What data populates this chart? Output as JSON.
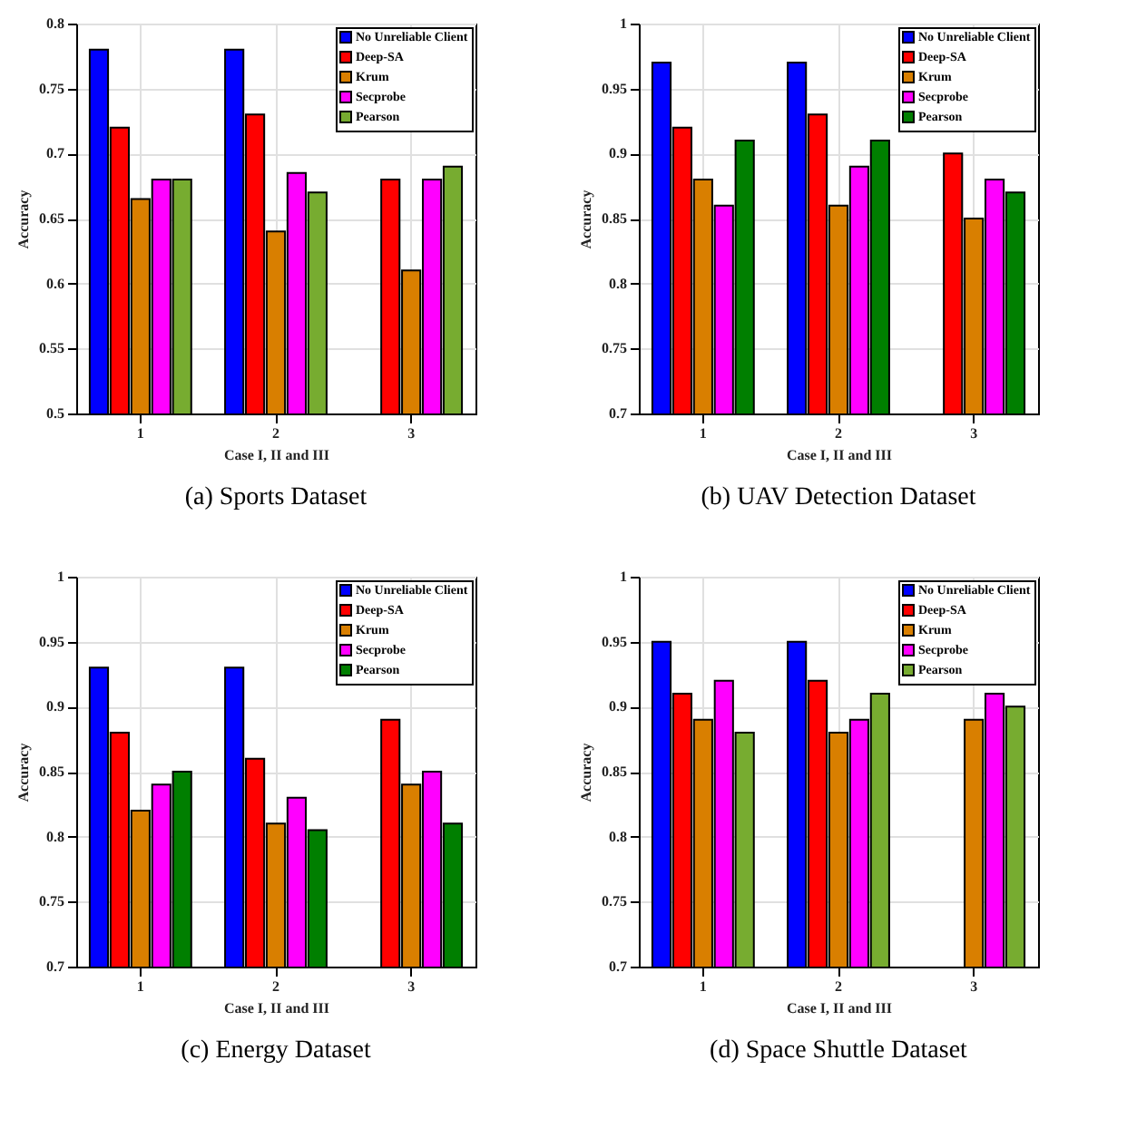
{
  "chart_data": [
    {
      "type": "bar",
      "title": "(a)  Sports Dataset",
      "xlabel": "Case I, II and III",
      "ylabel": "Accuracy",
      "categories": [
        "1",
        "2",
        "3"
      ],
      "ylim": [
        0.5,
        0.8
      ],
      "yticks": [
        0.5,
        0.55,
        0.6,
        0.65,
        0.7,
        0.75,
        0.8
      ],
      "grid": true,
      "legend": "top right",
      "series": [
        {
          "name": "No Unreliable Client",
          "color": "#0000ff",
          "values": [
            0.78,
            0.78,
            null
          ]
        },
        {
          "name": "Deep-SA",
          "color": "#ff0000",
          "values": [
            0.72,
            0.73,
            0.68
          ]
        },
        {
          "name": "Krum",
          "color": "#d97f00",
          "values": [
            0.665,
            0.64,
            0.61
          ]
        },
        {
          "name": "Secprobe",
          "color": "#ff00ff",
          "values": [
            0.68,
            0.685,
            0.68
          ]
        },
        {
          "name": "Pearson",
          "color": "#77ac30",
          "values": [
            0.68,
            0.67,
            0.69
          ]
        }
      ]
    },
    {
      "type": "bar",
      "title": "(b)  UAV Detection Dataset",
      "xlabel": "Case I, II and III",
      "ylabel": "Accuracy",
      "categories": [
        "1",
        "2",
        "3"
      ],
      "ylim": [
        0.7,
        1
      ],
      "yticks": [
        0.7,
        0.75,
        0.8,
        0.85,
        0.9,
        0.95,
        1
      ],
      "grid": true,
      "legend": "top right",
      "series": [
        {
          "name": "No Unreliable Client",
          "color": "#0000ff",
          "values": [
            0.97,
            0.97,
            null
          ]
        },
        {
          "name": "Deep-SA",
          "color": "#ff0000",
          "values": [
            0.92,
            0.93,
            0.9
          ]
        },
        {
          "name": "Krum",
          "color": "#d97f00",
          "values": [
            0.88,
            0.86,
            0.85
          ]
        },
        {
          "name": "Secprobe",
          "color": "#ff00ff",
          "values": [
            0.86,
            0.89,
            0.88
          ]
        },
        {
          "name": "Pearson",
          "color": "#007f00",
          "values": [
            0.91,
            0.91,
            0.87
          ]
        }
      ]
    },
    {
      "type": "bar",
      "title": "(c)  Energy Dataset",
      "xlabel": "Case I, II and III",
      "ylabel": "Accuracy",
      "categories": [
        "1",
        "2",
        "3"
      ],
      "ylim": [
        0.7,
        1
      ],
      "yticks": [
        0.7,
        0.75,
        0.8,
        0.85,
        0.9,
        0.95,
        1
      ],
      "grid": true,
      "legend": "top right",
      "series": [
        {
          "name": "No Unreliable Client",
          "color": "#0000ff",
          "values": [
            0.93,
            0.93,
            null
          ]
        },
        {
          "name": "Deep-SA",
          "color": "#ff0000",
          "values": [
            0.88,
            0.86,
            0.89
          ]
        },
        {
          "name": "Krum",
          "color": "#d97f00",
          "values": [
            0.82,
            0.81,
            0.84
          ]
        },
        {
          "name": "Secprobe",
          "color": "#ff00ff",
          "values": [
            0.84,
            0.83,
            0.85
          ]
        },
        {
          "name": "Pearson",
          "color": "#007f00",
          "values": [
            0.85,
            0.805,
            0.81
          ]
        }
      ]
    },
    {
      "type": "bar",
      "title": "(d)  Space Shuttle Dataset",
      "xlabel": "Case I, II and III",
      "ylabel": "Accuracy",
      "categories": [
        "1",
        "2",
        "3"
      ],
      "ylim": [
        0.7,
        1
      ],
      "yticks": [
        0.7,
        0.75,
        0.8,
        0.85,
        0.9,
        0.95,
        1
      ],
      "grid": true,
      "legend": "top right",
      "series": [
        {
          "name": "No Unreliable Client",
          "color": "#0000ff",
          "values": [
            0.95,
            0.95,
            null
          ]
        },
        {
          "name": "Deep-SA",
          "color": "#ff0000",
          "values": [
            0.91,
            0.92,
            null
          ]
        },
        {
          "name": "Krum",
          "color": "#d97f00",
          "values": [
            0.89,
            0.88,
            0.89
          ]
        },
        {
          "name": "Secprobe",
          "color": "#ff00ff",
          "values": [
            0.92,
            0.89,
            0.91
          ]
        },
        {
          "name": "Pearson",
          "color": "#77ac30",
          "values": [
            0.88,
            0.91,
            0.9
          ]
        }
      ]
    }
  ]
}
